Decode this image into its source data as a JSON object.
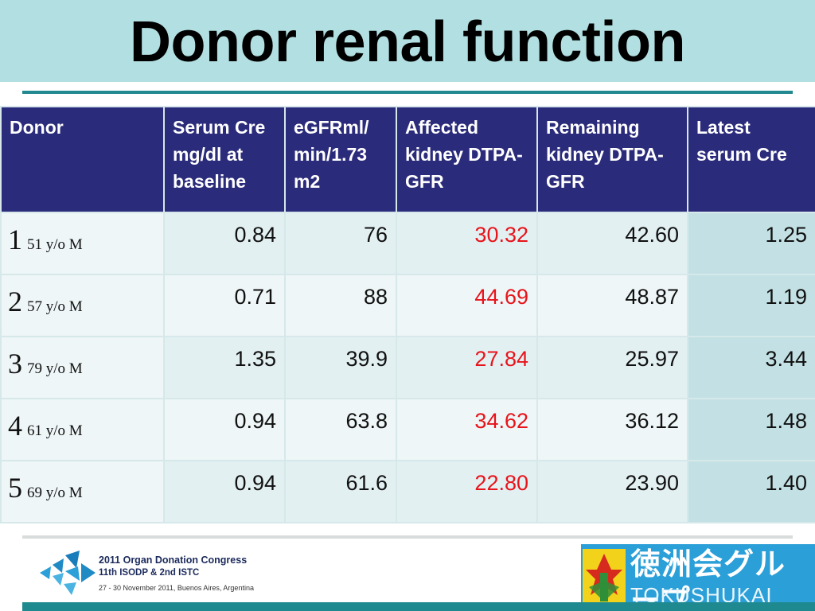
{
  "slide": {
    "title": "Donor renal function"
  },
  "table": {
    "headers": [
      "Donor",
      "Serum Cre mg/dl at baseline",
      "eGFRml/ min/1.73 m2",
      "Affected kidney DTPA-GFR",
      "Remaining kidney DTPA-GFR",
      "Latest serum Cre"
    ],
    "rows": [
      {
        "num": "1",
        "age": "51 y/o M",
        "serum_cre": "0.84",
        "egfr": "76",
        "affected": "30.32",
        "remaining": "42.60",
        "latest": "1.25"
      },
      {
        "num": "2",
        "age": "57 y/o M",
        "serum_cre": "0.71",
        "egfr": "88",
        "affected": "44.69",
        "remaining": "48.87",
        "latest": "1.19"
      },
      {
        "num": "3",
        "age": "79 y/o M",
        "serum_cre": "1.35",
        "egfr": "39.9",
        "affected": "27.84",
        "remaining": "25.97",
        "latest": "3.44"
      },
      {
        "num": "4",
        "age": "61 y/o M",
        "serum_cre": "0.94",
        "egfr": "63.8",
        "affected": "34.62",
        "remaining": "36.12",
        "latest": "1.48"
      },
      {
        "num": "5",
        "age": "69 y/o M",
        "serum_cre": "0.94",
        "egfr": "61.6",
        "affected": "22.80",
        "remaining": "23.90",
        "latest": "1.40"
      }
    ]
  },
  "footer": {
    "congress_title": "2011 Organ Donation Congress",
    "congress_sub": "11th ISODP & 2nd ISTC",
    "congress_dates": "27 - 30 November 2011, Buenos Aires, Argentina",
    "group_jp": "徳洲会グループ",
    "group_en": "TOKUSHUKAI GROUP"
  },
  "colors": {
    "title_bg": "#b2dfe2",
    "header_bg": "#2b2b7b",
    "affected_text": "#e8141b",
    "accent": "#1e8a8f"
  }
}
